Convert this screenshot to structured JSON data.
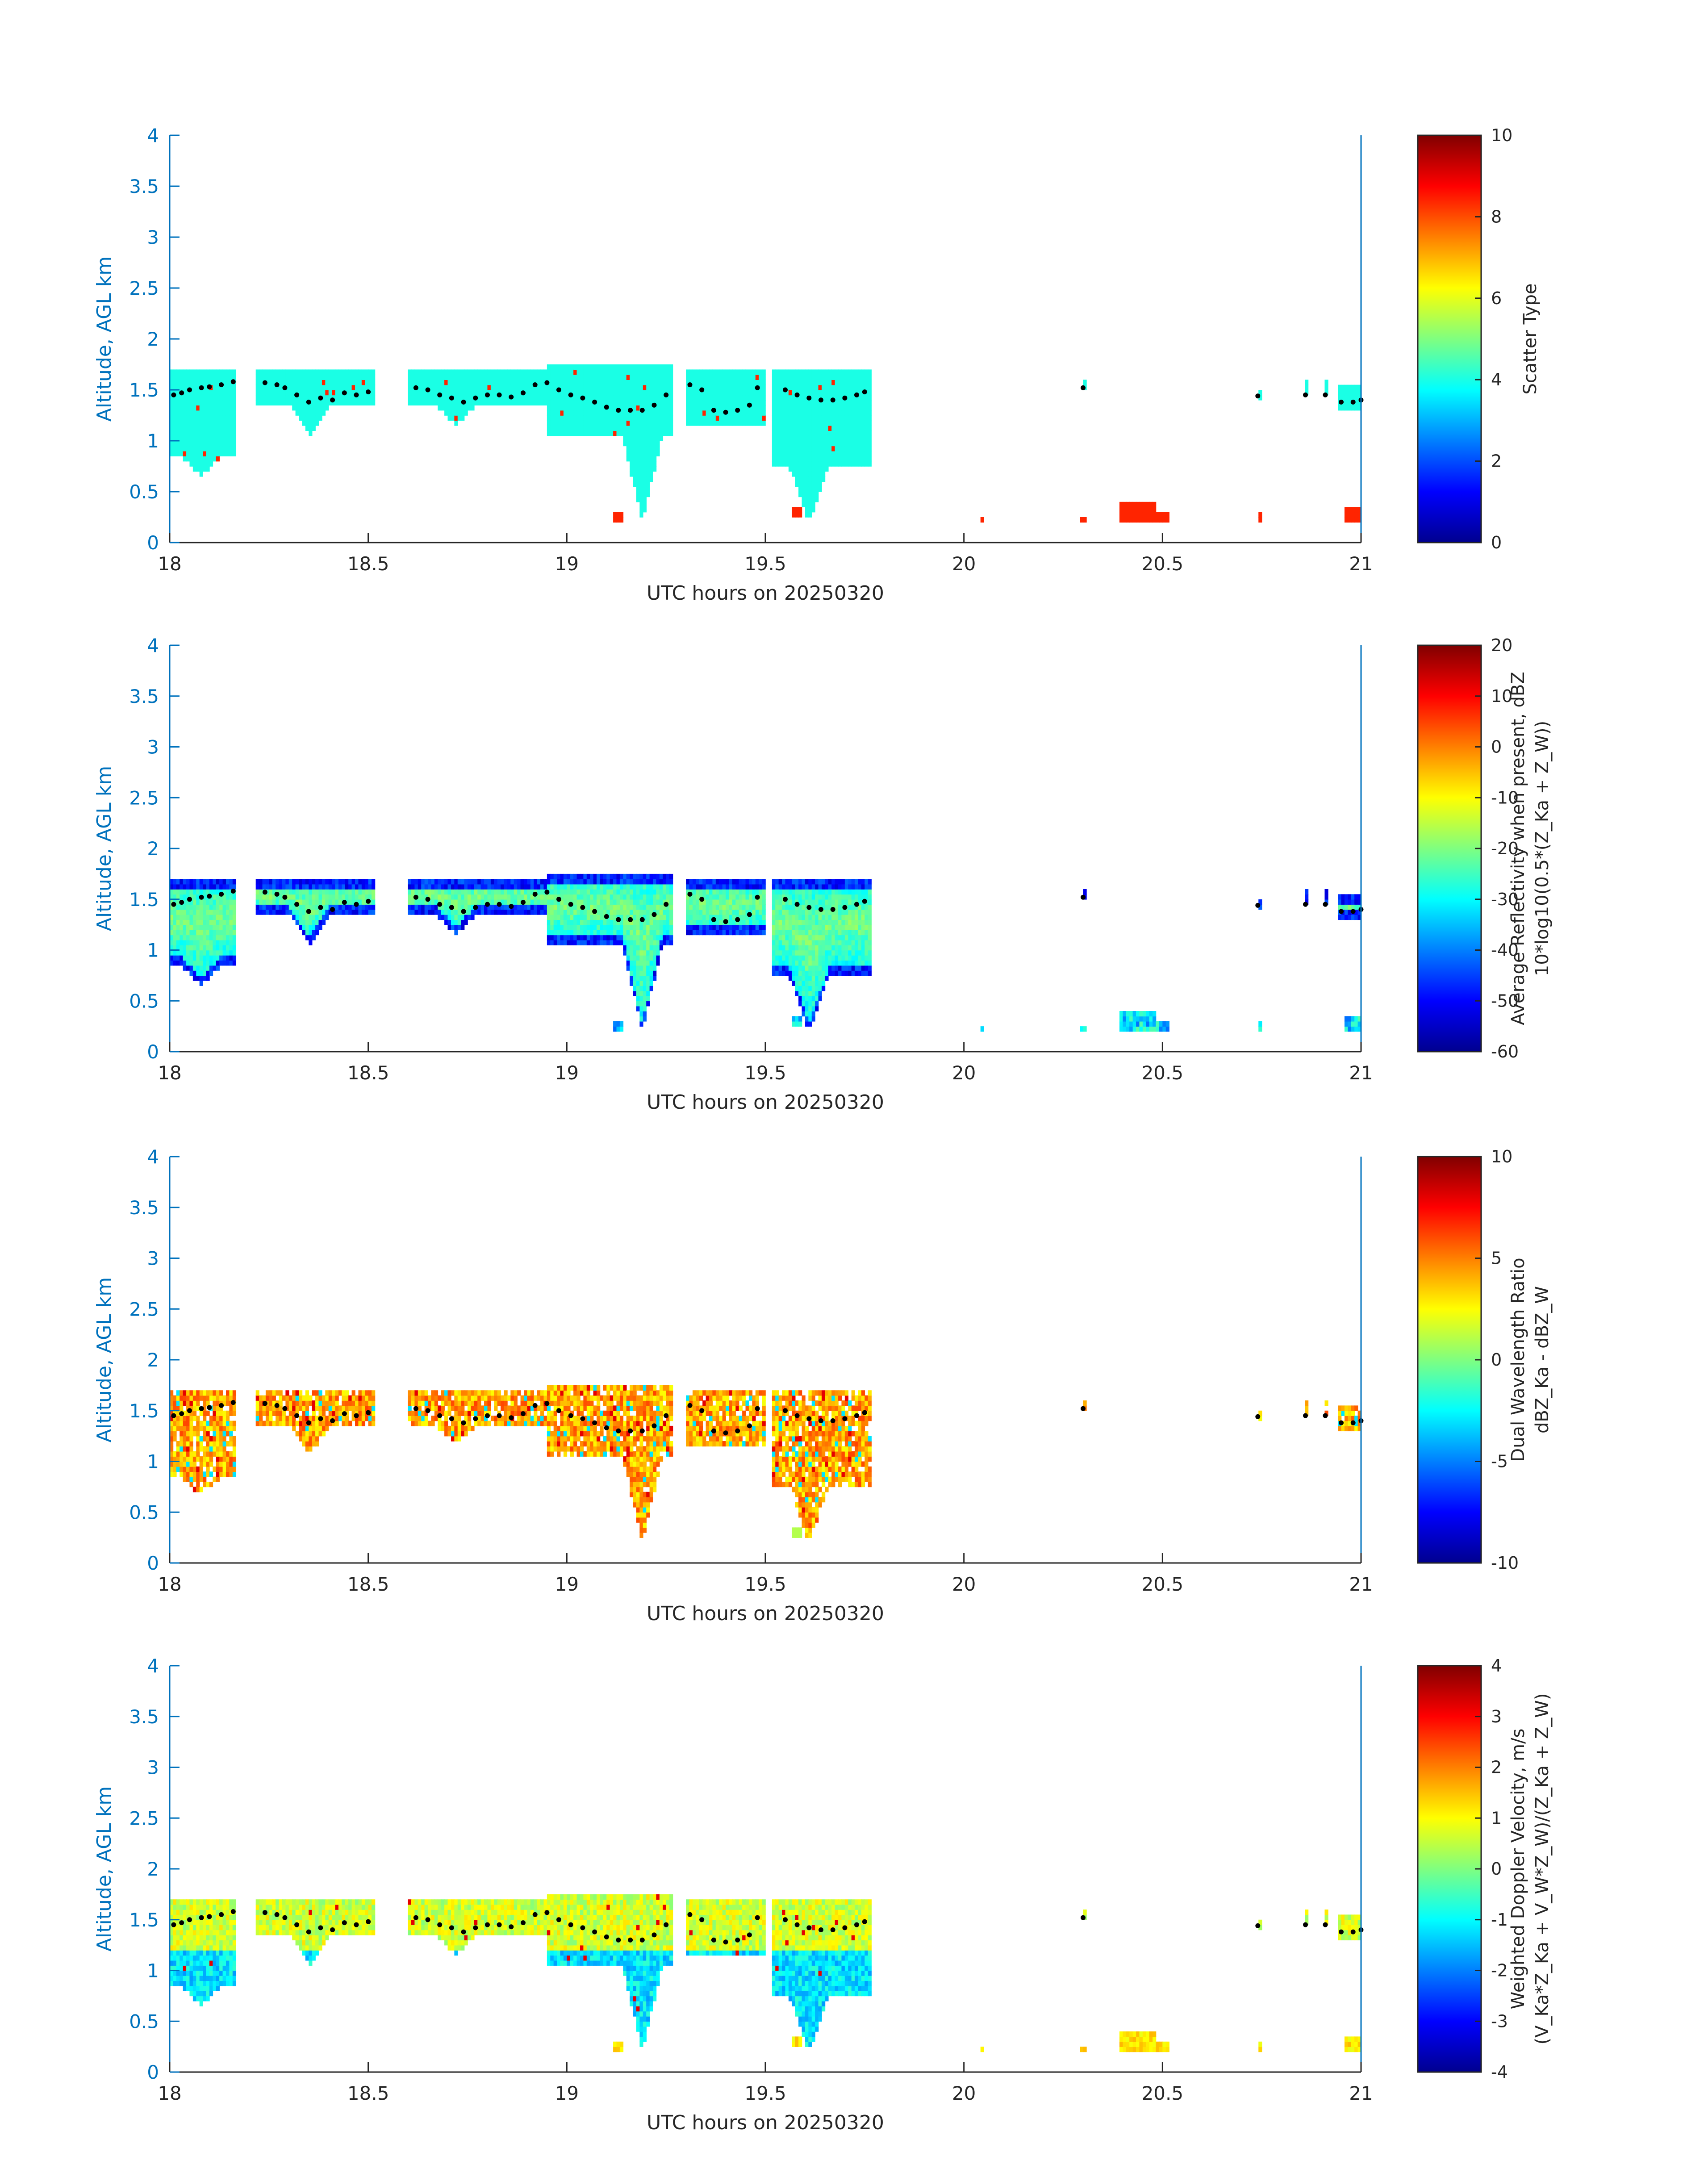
{
  "chart_data": [
    {
      "type": "heatmap",
      "xlabel": "UTC hours on 20250320",
      "ylabel": "Altitude, AGL km",
      "xlim": [
        18,
        21
      ],
      "ylim": [
        0,
        4
      ],
      "xticks": [
        "18",
        "18.5",
        "19",
        "19.5",
        "20",
        "20.5",
        "21"
      ],
      "yticks": [
        "0",
        "0.5",
        "1",
        "1.5",
        "2",
        "2.5",
        "3",
        "3.5",
        "4"
      ],
      "colorbar": {
        "label_lines": [
          "Scatter Type"
        ],
        "lim": [
          0,
          10
        ],
        "ticks": [
          "0",
          "2",
          "4",
          "6",
          "8",
          "10"
        ]
      },
      "colormap": "jet",
      "field": "scatter_type"
    },
    {
      "type": "heatmap",
      "xlabel": "UTC hours on 20250320",
      "ylabel": "Altitude, AGL km",
      "xlim": [
        18,
        21
      ],
      "ylim": [
        0,
        4
      ],
      "xticks": [
        "18",
        "18.5",
        "19",
        "19.5",
        "20",
        "20.5",
        "21"
      ],
      "yticks": [
        "0",
        "0.5",
        "1",
        "1.5",
        "2",
        "2.5",
        "3",
        "3.5",
        "4"
      ],
      "colorbar": {
        "label_lines": [
          "Average Reflectivity when present, dBZ",
          "10*log10(0.5*(Z_Ka + Z_W))"
        ],
        "lim": [
          -60,
          20
        ],
        "ticks": [
          "-60",
          "-50",
          "-40",
          "-30",
          "-20",
          "-10",
          "0",
          "10",
          "20"
        ]
      },
      "colormap": "jet",
      "field": "reflectivity"
    },
    {
      "type": "heatmap",
      "xlabel": "UTC hours on 20250320",
      "ylabel": "Altitude, AGL km",
      "xlim": [
        18,
        21
      ],
      "ylim": [
        0,
        4
      ],
      "xticks": [
        "18",
        "18.5",
        "19",
        "19.5",
        "20",
        "20.5",
        "21"
      ],
      "yticks": [
        "0",
        "0.5",
        "1",
        "1.5",
        "2",
        "2.5",
        "3",
        "3.5",
        "4"
      ],
      "colorbar": {
        "label_lines": [
          "Dual Wavelength Ratio",
          "dBZ_Ka - dBZ_W"
        ],
        "lim": [
          -10,
          10
        ],
        "ticks": [
          "-10",
          "-5",
          "0",
          "5",
          "10"
        ]
      },
      "colormap": "jet",
      "field": "dwr"
    },
    {
      "type": "heatmap",
      "xlabel": "UTC hours on 20250320",
      "ylabel": "Altitude, AGL km",
      "xlim": [
        18,
        21
      ],
      "ylim": [
        0,
        4
      ],
      "xticks": [
        "18",
        "18.5",
        "19",
        "19.5",
        "20",
        "20.5",
        "21"
      ],
      "yticks": [
        "0",
        "0.5",
        "1",
        "1.5",
        "2",
        "2.5",
        "3",
        "3.5",
        "4"
      ],
      "colorbar": {
        "label_lines": [
          "Weighted Doppler Velocity, m/s",
          "(V_Ka*Z_Ka + V_W*Z_W)/(Z_Ka + Z_W)"
        ],
        "lim": [
          -4,
          4
        ],
        "ticks": [
          "-4",
          "-3",
          "-2",
          "-1",
          "0",
          "1",
          "2",
          "3",
          "4"
        ]
      },
      "colormap": "jet",
      "field": "velocity"
    }
  ],
  "shared": {
    "cloud_segments": [
      {
        "t0": 18.0,
        "t1": 18.17,
        "top": 1.7,
        "bot": 0.85,
        "dip": {
          "t": 18.08,
          "bot": 0.65
        }
      },
      {
        "t0": 18.22,
        "t1": 18.52,
        "top": 1.7,
        "bot": 1.35,
        "dip": {
          "t": 18.35,
          "bot": 1.05
        }
      },
      {
        "t0": 18.6,
        "t1": 18.95,
        "top": 1.7,
        "bot": 1.35,
        "dip": {
          "t": 18.72,
          "bot": 1.15
        }
      },
      {
        "t0": 18.95,
        "t1": 19.27,
        "top": 1.75,
        "bot": 1.05,
        "dip": {
          "t": 19.19,
          "bot": 0.2
        }
      },
      {
        "t0": 19.3,
        "t1": 19.5,
        "top": 1.7,
        "bot": 1.15,
        "dip": {
          "t": 19.45,
          "bot": 1.15
        }
      },
      {
        "t0": 19.52,
        "t1": 19.77,
        "top": 1.7,
        "bot": 0.75,
        "dip": {
          "t": 19.61,
          "bot": 0.2
        }
      },
      {
        "t0": 20.3,
        "t1": 20.31,
        "top": 1.6,
        "bot": 1.48,
        "dip": null
      },
      {
        "t0": 20.74,
        "t1": 20.75,
        "top": 1.5,
        "bot": 1.4,
        "dip": null
      },
      {
        "t0": 20.86,
        "t1": 20.87,
        "top": 1.6,
        "bot": 1.45,
        "dip": null
      },
      {
        "t0": 20.91,
        "t1": 20.92,
        "top": 1.6,
        "bot": 1.45,
        "dip": null
      },
      {
        "t0": 20.94,
        "t1": 21.0,
        "top": 1.55,
        "bot": 1.3,
        "dip": null
      }
    ],
    "low_echoes": [
      {
        "t0": 19.12,
        "t1": 19.14,
        "top": 0.3,
        "bot": 0.18
      },
      {
        "t0": 19.57,
        "t1": 19.59,
        "top": 0.35,
        "bot": 0.25
      },
      {
        "t0": 20.04,
        "t1": 20.05,
        "top": 0.25,
        "bot": 0.18
      },
      {
        "t0": 20.29,
        "t1": 20.31,
        "top": 0.25,
        "bot": 0.18
      },
      {
        "t0": 20.39,
        "t1": 20.48,
        "top": 0.4,
        "bot": 0.18
      },
      {
        "t0": 20.48,
        "t1": 20.52,
        "top": 0.3,
        "bot": 0.18
      },
      {
        "t0": 20.74,
        "t1": 20.75,
        "top": 0.3,
        "bot": 0.18
      },
      {
        "t0": 20.96,
        "t1": 21.0,
        "top": 0.35,
        "bot": 0.18
      }
    ],
    "cloud_base_dots": [
      [
        18.01,
        1.45
      ],
      [
        18.03,
        1.47
      ],
      [
        18.05,
        1.5
      ],
      [
        18.08,
        1.52
      ],
      [
        18.1,
        1.53
      ],
      [
        18.13,
        1.55
      ],
      [
        18.16,
        1.58
      ],
      [
        18.24,
        1.57
      ],
      [
        18.27,
        1.55
      ],
      [
        18.29,
        1.52
      ],
      [
        18.32,
        1.45
      ],
      [
        18.35,
        1.38
      ],
      [
        18.38,
        1.42
      ],
      [
        18.41,
        1.4
      ],
      [
        18.44,
        1.47
      ],
      [
        18.47,
        1.45
      ],
      [
        18.5,
        1.48
      ],
      [
        18.62,
        1.52
      ],
      [
        18.65,
        1.5
      ],
      [
        18.68,
        1.45
      ],
      [
        18.71,
        1.42
      ],
      [
        18.74,
        1.38
      ],
      [
        18.77,
        1.42
      ],
      [
        18.8,
        1.45
      ],
      [
        18.83,
        1.45
      ],
      [
        18.86,
        1.43
      ],
      [
        18.89,
        1.47
      ],
      [
        18.92,
        1.55
      ],
      [
        18.95,
        1.57
      ],
      [
        18.98,
        1.5
      ],
      [
        19.01,
        1.45
      ],
      [
        19.04,
        1.42
      ],
      [
        19.07,
        1.38
      ],
      [
        19.1,
        1.33
      ],
      [
        19.13,
        1.3
      ],
      [
        19.16,
        1.3
      ],
      [
        19.19,
        1.3
      ],
      [
        19.22,
        1.35
      ],
      [
        19.25,
        1.45
      ],
      [
        19.31,
        1.55
      ],
      [
        19.34,
        1.5
      ],
      [
        19.37,
        1.3
      ],
      [
        19.4,
        1.28
      ],
      [
        19.43,
        1.3
      ],
      [
        19.46,
        1.35
      ],
      [
        19.48,
        1.52
      ],
      [
        19.55,
        1.5
      ],
      [
        19.58,
        1.45
      ],
      [
        19.61,
        1.42
      ],
      [
        19.64,
        1.4
      ],
      [
        19.67,
        1.4
      ],
      [
        19.7,
        1.42
      ],
      [
        19.73,
        1.45
      ],
      [
        19.75,
        1.48
      ],
      [
        20.3,
        1.52
      ],
      [
        20.74,
        1.44
      ],
      [
        20.86,
        1.45
      ],
      [
        20.91,
        1.45
      ],
      [
        20.95,
        1.38
      ],
      [
        20.98,
        1.38
      ],
      [
        21.0,
        1.4
      ]
    ]
  }
}
